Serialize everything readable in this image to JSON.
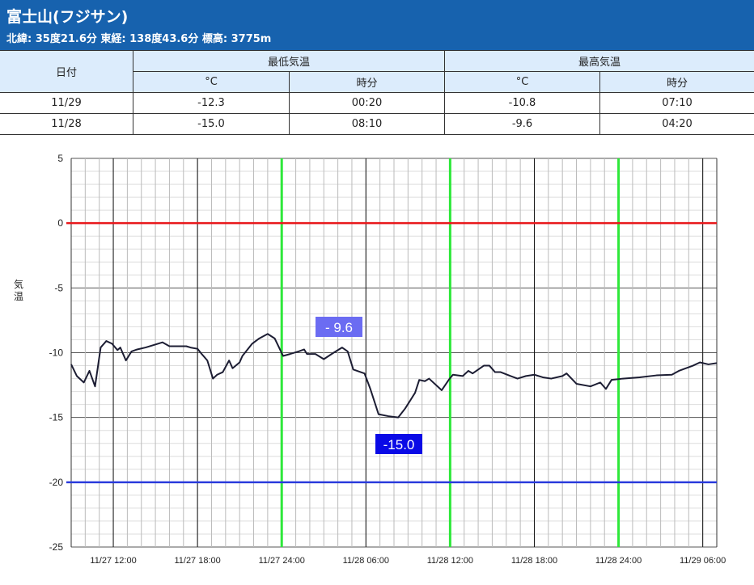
{
  "header": {
    "title": "富士山(フジサン)",
    "subtitle": "北緯: 35度21.6分 東経: 138度43.6分 標高: 3775m"
  },
  "table": {
    "date_header": "日付",
    "min_header": "最低気温",
    "max_header": "最高気温",
    "unit": "°C",
    "time": "時分",
    "rows": [
      {
        "date": "11/29",
        "min": "-12.3",
        "min_time": "00:20",
        "max": "-10.8",
        "max_time": "07:10"
      },
      {
        "date": "11/28",
        "min": "-15.0",
        "min_time": "08:10",
        "max": "-9.6",
        "max_time": "04:20"
      }
    ]
  },
  "chart_data": {
    "type": "line",
    "ylabel": "気温",
    "ylim": [
      -25,
      5
    ],
    "yticks": [
      5,
      0,
      -5,
      -10,
      -15,
      -20,
      -25
    ],
    "x_unit": "hours since 11/27 09:00",
    "xlim": [
      0,
      46
    ],
    "xticks": [
      {
        "h": 3,
        "label": "11/27 12:00"
      },
      {
        "h": 9,
        "label": "11/27 18:00"
      },
      {
        "h": 15,
        "label": "11/27 24:00"
      },
      {
        "h": 21,
        "label": "11/28 06:00"
      },
      {
        "h": 27,
        "label": "11/28 12:00"
      },
      {
        "h": 33,
        "label": "11/28 18:00"
      },
      {
        "h": 39,
        "label": "11/28 24:00"
      },
      {
        "h": 45,
        "label": "11/29 06:00"
      }
    ],
    "green_lines_h": [
      15,
      27,
      39
    ],
    "ref_lines": [
      {
        "y": 0,
        "color": "#e8191c"
      },
      {
        "y": -20,
        "color": "#2a3bdc"
      }
    ],
    "annotations": [
      {
        "label": "- 9.6",
        "h": 19.3,
        "y": -9.6,
        "color": "#6b6cf2"
      },
      {
        "label": "-15.0",
        "h": 23.4,
        "y": -15.0,
        "color": "#0a0ae6"
      }
    ],
    "series": [
      {
        "name": "気温",
        "color": "#1c1d33",
        "points": [
          [
            0,
            -10.9
          ],
          [
            0.4,
            -11.8
          ],
          [
            0.9,
            -12.3
          ],
          [
            1.3,
            -11.4
          ],
          [
            1.7,
            -12.6
          ],
          [
            2.1,
            -9.6
          ],
          [
            2.5,
            -9.1
          ],
          [
            2.9,
            -9.3
          ],
          [
            3.3,
            -9.8
          ],
          [
            3.5,
            -9.6
          ],
          [
            3.9,
            -10.6
          ],
          [
            4.3,
            -9.9
          ],
          [
            4.7,
            -9.75
          ],
          [
            5.3,
            -9.6
          ],
          [
            6.2,
            -9.3
          ],
          [
            6.5,
            -9.2
          ],
          [
            7.0,
            -9.5
          ],
          [
            8.2,
            -9.5
          ],
          [
            8.5,
            -9.6
          ],
          [
            9.0,
            -9.7
          ],
          [
            9.3,
            -10.1
          ],
          [
            9.7,
            -10.6
          ],
          [
            10.1,
            -12.0
          ],
          [
            10.4,
            -11.7
          ],
          [
            10.8,
            -11.5
          ],
          [
            11.25,
            -10.6
          ],
          [
            11.5,
            -11.2
          ],
          [
            12.0,
            -10.75
          ],
          [
            12.2,
            -10.25
          ],
          [
            12.9,
            -9.3
          ],
          [
            13.4,
            -8.9
          ],
          [
            14.0,
            -8.55
          ],
          [
            14.5,
            -8.9
          ],
          [
            14.9,
            -9.8
          ],
          [
            15.1,
            -10.25
          ],
          [
            15.6,
            -10.1
          ],
          [
            16.2,
            -9.9
          ],
          [
            16.6,
            -9.75
          ],
          [
            16.8,
            -10.1
          ],
          [
            17.4,
            -10.1
          ],
          [
            18.0,
            -10.5
          ],
          [
            18.7,
            -10.0
          ],
          [
            19.3,
            -9.6
          ],
          [
            19.7,
            -9.9
          ],
          [
            20.1,
            -11.3
          ],
          [
            20.9,
            -11.6
          ],
          [
            21.3,
            -12.75
          ],
          [
            21.9,
            -14.75
          ],
          [
            22.6,
            -14.9
          ],
          [
            23.3,
            -15.0
          ],
          [
            23.8,
            -14.3
          ],
          [
            24.5,
            -13.1
          ],
          [
            24.8,
            -12.1
          ],
          [
            25.2,
            -12.2
          ],
          [
            25.5,
            -12.0
          ],
          [
            26.4,
            -12.9
          ],
          [
            26.9,
            -12.1
          ],
          [
            27.2,
            -11.7
          ],
          [
            27.9,
            -11.8
          ],
          [
            28.3,
            -11.4
          ],
          [
            28.6,
            -11.6
          ],
          [
            29.4,
            -11.0
          ],
          [
            29.8,
            -11.0
          ],
          [
            30.2,
            -11.5
          ],
          [
            30.6,
            -11.5
          ],
          [
            31.3,
            -11.8
          ],
          [
            31.8,
            -12.0
          ],
          [
            32.4,
            -11.8
          ],
          [
            33.0,
            -11.7
          ],
          [
            33.6,
            -11.9
          ],
          [
            34.2,
            -12.0
          ],
          [
            35.0,
            -11.8
          ],
          [
            35.3,
            -11.6
          ],
          [
            36.0,
            -12.4
          ],
          [
            37.0,
            -12.6
          ],
          [
            37.7,
            -12.3
          ],
          [
            38.1,
            -12.8
          ],
          [
            38.5,
            -12.1
          ],
          [
            39.3,
            -12.0
          ],
          [
            40.5,
            -11.9
          ],
          [
            41.7,
            -11.75
          ],
          [
            42.8,
            -11.7
          ],
          [
            43.3,
            -11.4
          ],
          [
            44.3,
            -11.0
          ],
          [
            44.8,
            -10.75
          ],
          [
            45.4,
            -10.9
          ],
          [
            46.0,
            -10.8
          ]
        ]
      }
    ]
  }
}
